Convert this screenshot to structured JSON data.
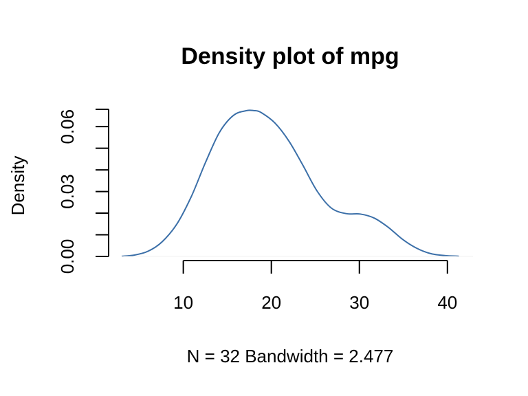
{
  "chart_data": {
    "type": "line",
    "title": "Density plot of mpg",
    "subtitle": "N = 32   Bandwidth = 2.477",
    "xlabel": "",
    "ylabel": "Density",
    "xlim": [
      3,
      41.5
    ],
    "ylim": [
      0,
      0.068
    ],
    "x_ticks": [
      10,
      20,
      30,
      40
    ],
    "x_tick_labels": [
      "10",
      "20",
      "30",
      "40"
    ],
    "y_ticks": [
      0,
      0.01,
      0.02,
      0.03,
      0.04,
      0.05,
      0.06,
      0.068
    ],
    "y_tick_labels": [
      "0.00",
      "",
      "",
      "0.03",
      "",
      "",
      "0.06",
      ""
    ],
    "grid": false,
    "line_color": "#3b6fa8",
    "series": [
      {
        "x": [
          3.0,
          4.4,
          6.0,
          7.6,
          9.3,
          10.9,
          12.5,
          14.1,
          15.7,
          17.2,
          18.0,
          18.8,
          20.4,
          22.0,
          23.6,
          25.2,
          26.8,
          28.5,
          30.1,
          31.7,
          33.3,
          34.9,
          36.5,
          38.1,
          39.7,
          41.3
        ],
        "y": [
          0.0001,
          0.0006,
          0.0024,
          0.0068,
          0.0152,
          0.0276,
          0.0432,
          0.0573,
          0.0652,
          0.0674,
          0.0674,
          0.0666,
          0.0617,
          0.0533,
          0.042,
          0.0302,
          0.0224,
          0.0198,
          0.0196,
          0.0177,
          0.0134,
          0.0079,
          0.0038,
          0.0013,
          0.0004,
          0.0001
        ]
      }
    ]
  }
}
